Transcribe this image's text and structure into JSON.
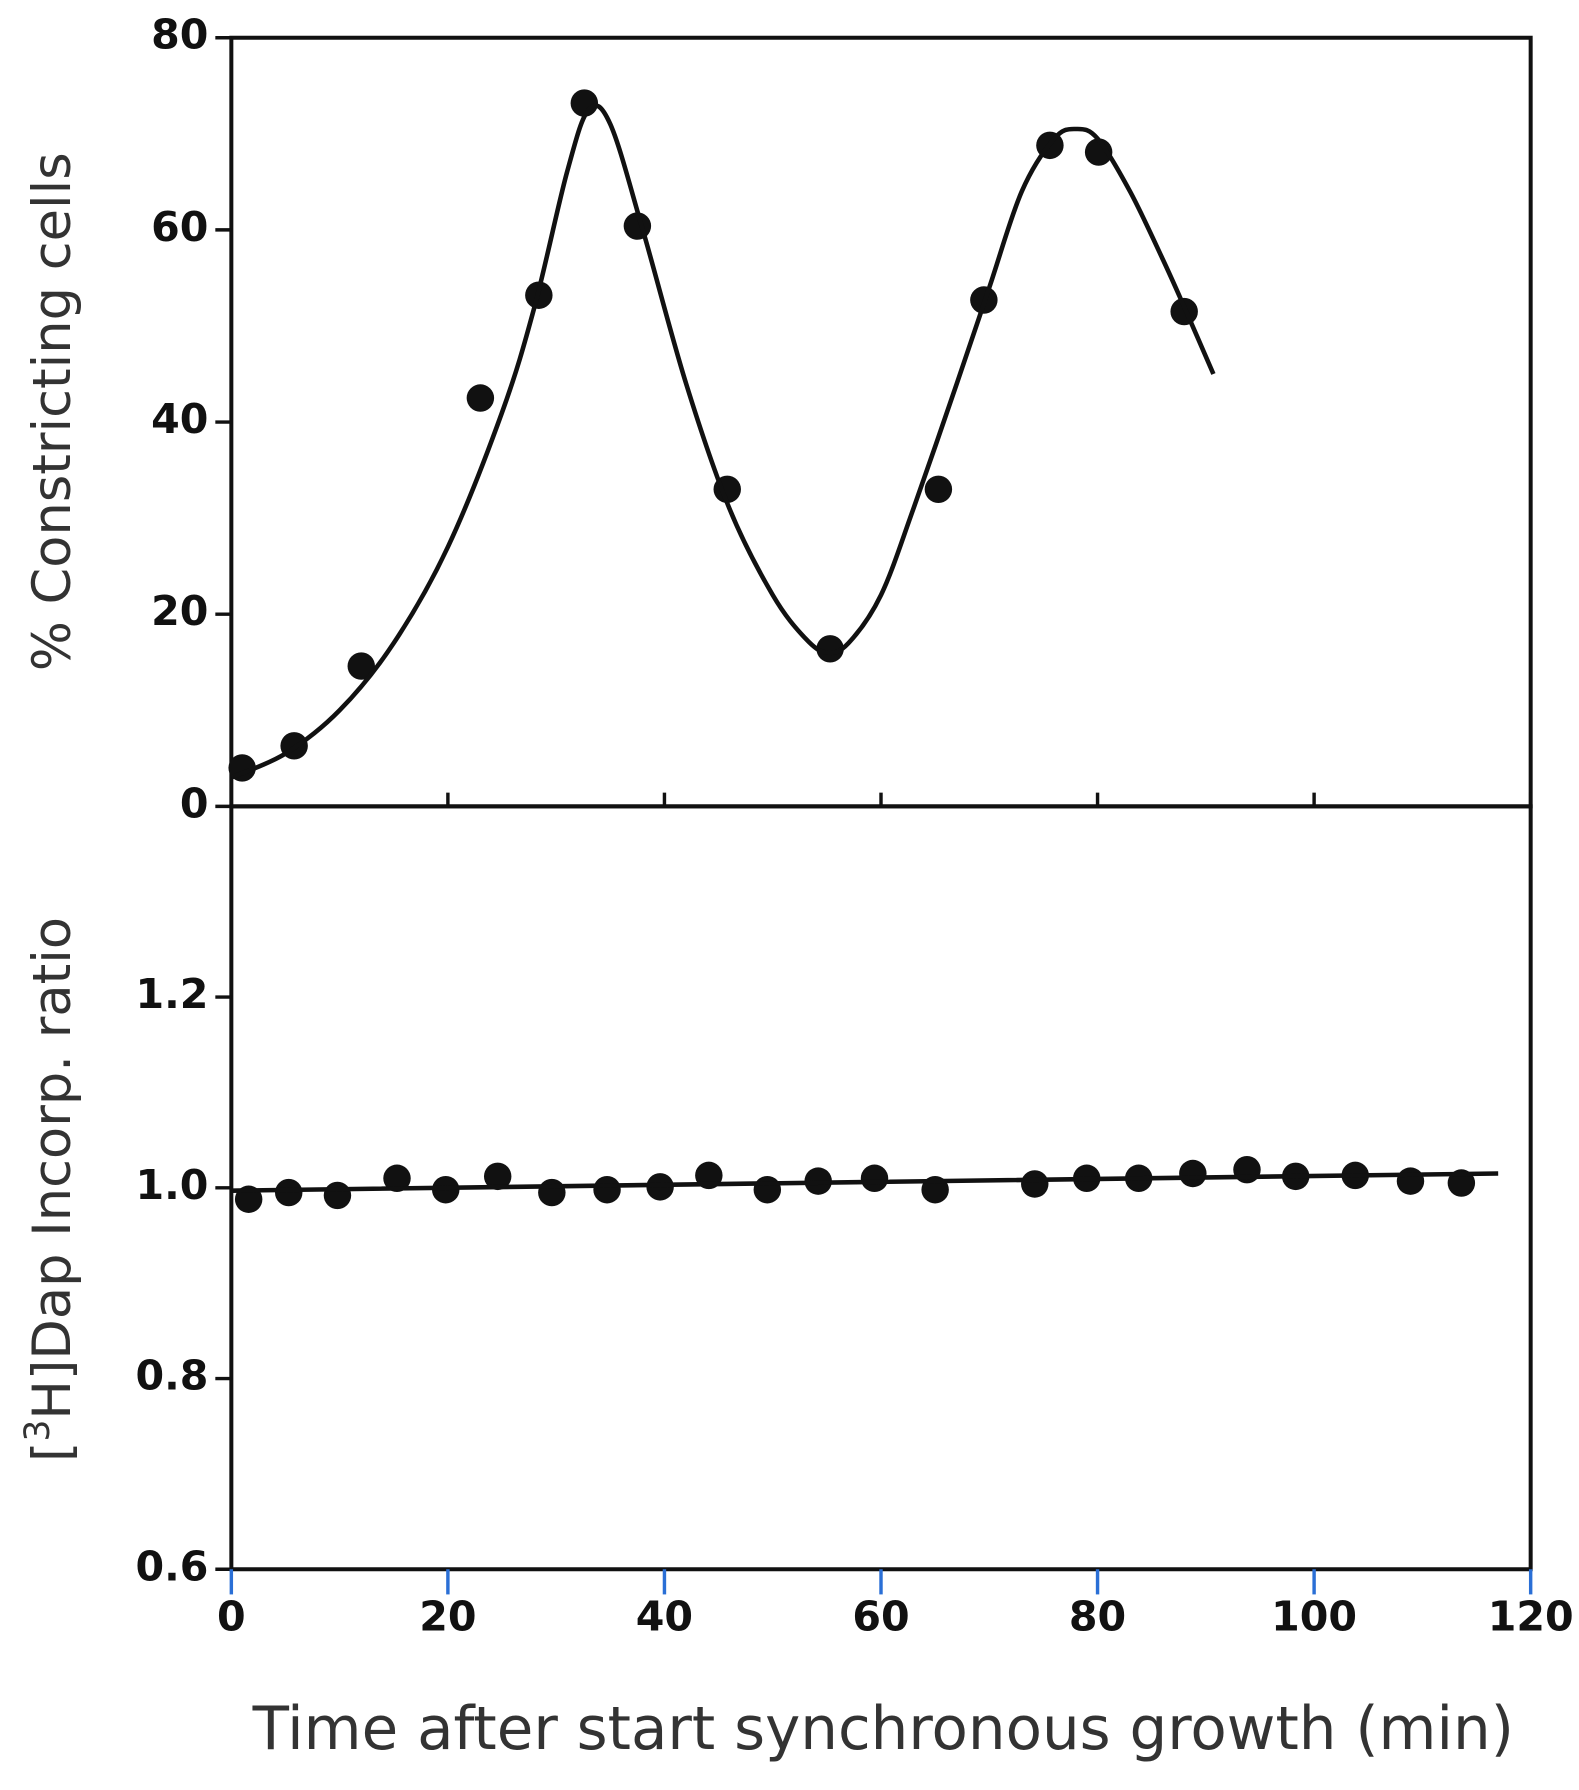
{
  "chart_data": [
    {
      "type": "line",
      "ylabel": "% Constricting cells",
      "xlim": [
        0,
        120
      ],
      "xticks": [
        20,
        40,
        60,
        80,
        100,
        120
      ],
      "ylim": [
        0,
        80
      ],
      "yticks": [
        0,
        20,
        40,
        60,
        80
      ],
      "color": "#111111",
      "series": [
        {
          "mode": "markers",
          "x": [
            1,
            5.8,
            12,
            23,
            28.4,
            32.6,
            37.5,
            45.8,
            55.3,
            65.3,
            69.5,
            75.6,
            80.1,
            88
          ],
          "values": [
            4,
            6.3,
            14.6,
            42.5,
            53.2,
            73.2,
            60.4,
            33,
            16.4,
            33,
            52.7,
            68.8,
            68.1,
            51.5
          ]
        },
        {
          "mode": "line",
          "x": [
            0,
            5,
            10,
            15,
            20,
            25,
            28,
            31,
            33,
            35,
            38,
            42,
            46,
            50,
            53,
            55,
            57,
            60,
            63,
            67,
            70,
            73,
            76,
            78,
            80,
            83,
            86,
            88,
            90.7
          ],
          "values": [
            3,
            5.5,
            10,
            17,
            27,
            41,
            52,
            66,
            72.5,
            71,
            60,
            44,
            31,
            22,
            17.5,
            16,
            17,
            22,
            31,
            44,
            54,
            64,
            69.5,
            70.5,
            69.5,
            64,
            57,
            52,
            45
          ]
        }
      ]
    },
    {
      "type": "line",
      "ylabel": {
        "prefix": "[",
        "superscript": "3",
        "text": "H]Dap Incorp. ratio"
      },
      "xlabel": "Time after start synchronous growth (min)",
      "xlim": [
        0,
        120
      ],
      "xticks": [
        0,
        20,
        40,
        60,
        80,
        100,
        120
      ],
      "xtick_color": "#2a6fd6",
      "ylim": [
        0.6,
        1.4
      ],
      "yticks": [
        {
          "value": 0.6,
          "label": "0.6"
        },
        {
          "value": 0.8,
          "label": "0.8"
        },
        {
          "value": 1.0,
          "label": "1.0"
        },
        {
          "value": 1.2,
          "label": "1.2"
        }
      ],
      "color": "#111111",
      "series": [
        {
          "mode": "markers",
          "x": [
            1.6,
            5.3,
            9.8,
            15.3,
            19.8,
            24.6,
            29.6,
            34.7,
            39.6,
            44.1,
            49.5,
            54.2,
            59.4,
            65,
            74.2,
            79,
            83.8,
            88.8,
            93.8,
            98.3,
            103.8,
            108.9,
            113.6
          ],
          "values": [
            0.988,
            0.995,
            0.992,
            1.01,
            0.998,
            1.012,
            0.995,
            0.998,
            1.001,
            1.013,
            0.998,
            1.007,
            1.01,
            0.998,
            1.004,
            1.01,
            1.01,
            1.015,
            1.019,
            1.012,
            1.013,
            1.007,
            1.005
          ]
        },
        {
          "mode": "line",
          "x": [
            0,
            117
          ],
          "values": [
            0.997,
            1.015
          ]
        }
      ]
    }
  ]
}
